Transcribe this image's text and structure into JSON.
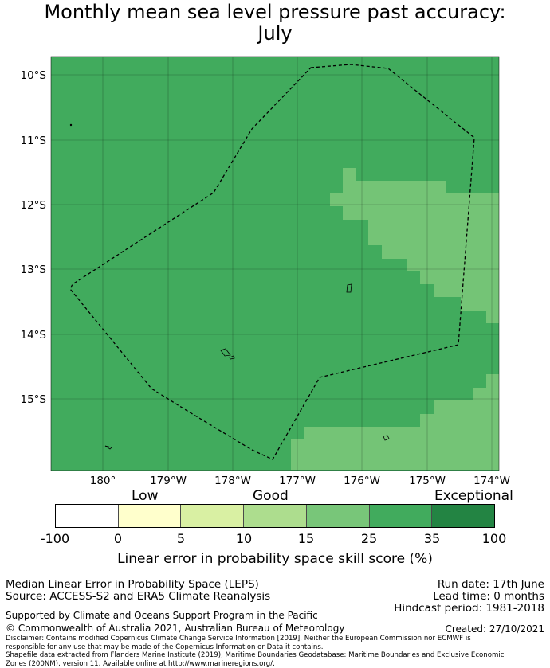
{
  "title": {
    "line1": "Monthly mean sea level pressure past accuracy:",
    "line2": "July"
  },
  "map": {
    "lat_labels": [
      "10°S",
      "11°S",
      "12°S",
      "13°S",
      "14°S",
      "15°S"
    ],
    "lon_labels": [
      "180°",
      "179°W",
      "178°W",
      "177°W",
      "176°W",
      "175°W",
      "174°W"
    ],
    "colors": {
      "base": "#41ab5d",
      "light": "#74c476"
    }
  },
  "legend": {
    "categories": [
      "Low",
      "Good",
      "Exceptional"
    ],
    "ticks": [
      "-100",
      "0",
      "5",
      "10",
      "15",
      "25",
      "35",
      "100"
    ],
    "colors": [
      "#ffffff",
      "#ffffcc",
      "#d9f0a3",
      "#addd8e",
      "#78c679",
      "#41ab5d",
      "#238443"
    ],
    "title": "Linear error in probability space skill score (%)"
  },
  "footer": {
    "method": "Median Linear Error in Probability Space (LEPS)",
    "source": "Source: ACCESS-S2 and ERA5 Climate Reanalysis",
    "run_date": "Run date: 17th June",
    "lead_time": "Lead time: 0 months",
    "hindcast": "Hindcast period: 1981-2018",
    "supported": "Supported by Climate and Oceans Support Program in the Pacific",
    "copyright": "© Commonwealth of Australia 2021, Australian Bureau of Meteorology",
    "created": "Created: 27/10/2021",
    "disclaimer1": "Disclaimer: Contains modified Copernicus Climate Change Service Information [2019]. Neither the European Commission nor ECMWF is",
    "disclaimer2": "responsible for any use that may be made of the Copernicus Information or Data it contains.",
    "disclaimer3": "Shapefile data extracted from Flanders Marine Institute (2019), Maritime Boundaries Geodatabase: Maritime Boundaries and Exclusive Economic",
    "disclaimer4": "Zones (200NM), version 11. Available online at http://www.marineregions.org/."
  }
}
